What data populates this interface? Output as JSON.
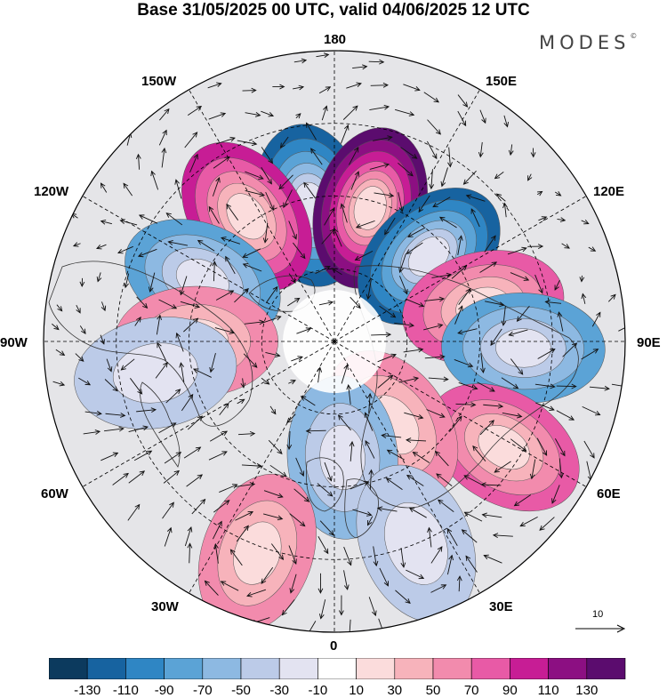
{
  "title": "Base 31/05/2025 00 UTC, valid 04/06/2025 12 UTC",
  "brand": "MODES",
  "brand_mark": "©",
  "longitude_labels": {
    "n180": "180",
    "e150": "150E",
    "e120": "120E",
    "e90": "90E",
    "e60": "60E",
    "e30": "30E",
    "z0": "0",
    "w30": "30W",
    "w60": "60W",
    "w90": "90W",
    "w120": "120W",
    "w150": "150W"
  },
  "vector_scale_label": "10",
  "colorbar": {
    "colors": [
      "#0c3a5e",
      "#1763a0",
      "#2f86c4",
      "#5ba3d6",
      "#8db9e2",
      "#bccbe8",
      "#e3e3f1",
      "#ffffff",
      "#fbdcdc",
      "#f7b3bb",
      "#f28bad",
      "#e85aa6",
      "#c71d95",
      "#8c0f82",
      "#5b0c6e"
    ],
    "tick_labels": [
      "-130",
      "-110",
      "-90",
      "-70",
      "-50",
      "-30",
      "-10",
      "10",
      "30",
      "50",
      "70",
      "90",
      "110",
      "130"
    ]
  },
  "anomaly_centers": [
    {
      "lon": -170,
      "lat": 52,
      "value": -110
    },
    {
      "lon": 165,
      "lat": 52,
      "value": 130
    },
    {
      "lon": 132,
      "lat": 55,
      "value": -110
    },
    {
      "lon": -145,
      "lat": 48,
      "value": 90
    },
    {
      "lon": -115,
      "lat": 50,
      "value": -70
    },
    {
      "lon": 103,
      "lat": 48,
      "value": 70
    },
    {
      "lon": 88,
      "lat": 38,
      "value": -70
    },
    {
      "lon": 58,
      "lat": 35,
      "value": 70
    },
    {
      "lon": 35,
      "lat": 62,
      "value": 50
    },
    {
      "lon": 4,
      "lat": 58,
      "value": -50
    },
    {
      "lon": -90,
      "lat": 52,
      "value": 50
    },
    {
      "lon": -80,
      "lat": 40,
      "value": -30
    },
    {
      "lon": -20,
      "lat": 28,
      "value": 50
    },
    {
      "lon": 22,
      "lat": 30,
      "value": -30
    }
  ]
}
